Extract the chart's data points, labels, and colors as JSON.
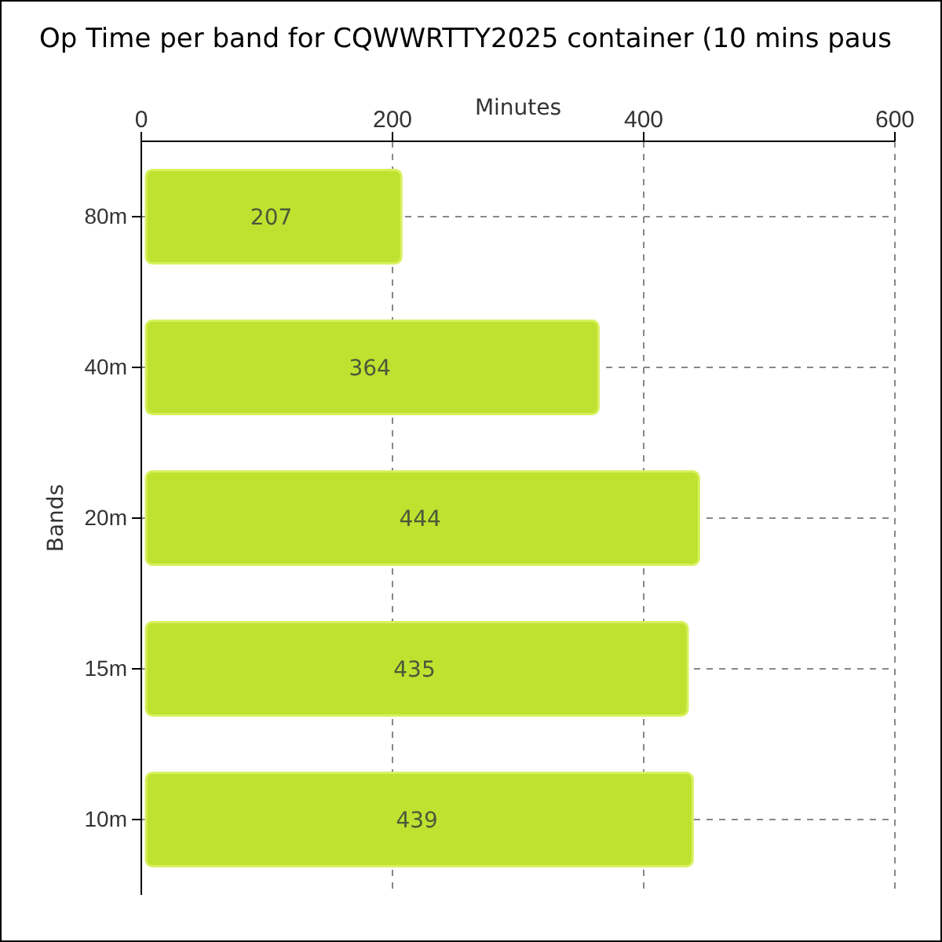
{
  "chart_data": {
    "type": "bar",
    "orientation": "horizontal",
    "title": "Op Time per band for CQWWRTTY2025 container (10 mins paus",
    "xlabel": "Minutes",
    "ylabel": "Bands",
    "categories": [
      "80m",
      "40m",
      "20m",
      "15m",
      "10m"
    ],
    "values": [
      207,
      364,
      444,
      435,
      439
    ],
    "color": "#bee22f",
    "xlim": [
      0,
      600
    ],
    "xticks": [
      0,
      200,
      400,
      600
    ],
    "grid": true,
    "data_labels": true
  }
}
